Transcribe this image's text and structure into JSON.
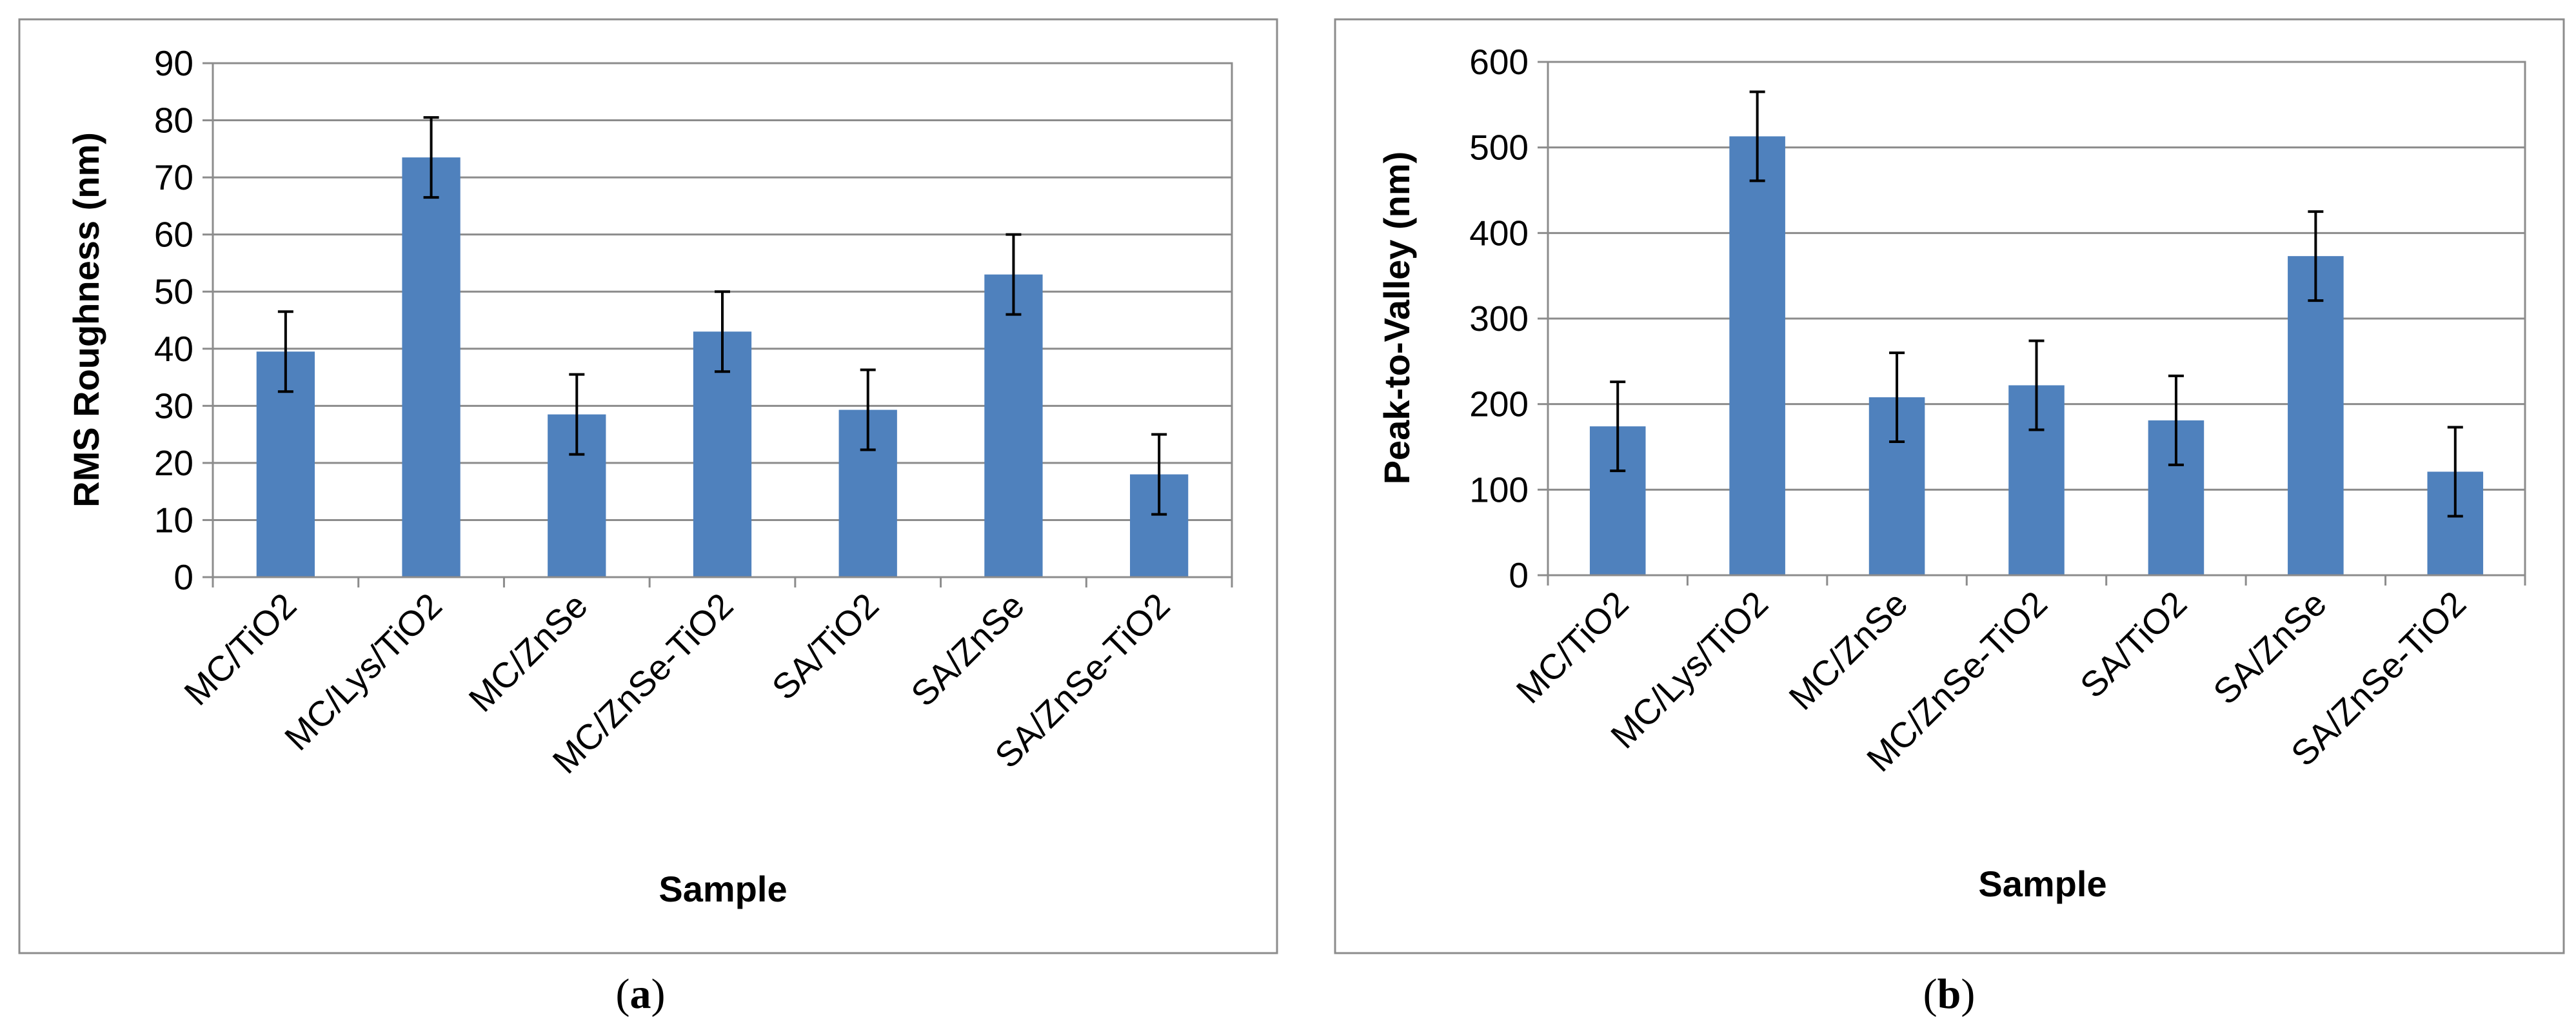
{
  "chart_data": [
    {
      "type": "bar",
      "panel_caption": "a",
      "title": "",
      "xlabel": "Sample",
      "ylabel": "RMS Roughness (nm)",
      "ylim": [
        0,
        90
      ],
      "yticks": [
        0,
        10,
        20,
        30,
        40,
        50,
        60,
        70,
        80,
        90
      ],
      "grid": true,
      "categories": [
        "MC/TiO2",
        "MC/Lys/TiO2",
        "MC/ZnSe",
        "MC/ZnSe-TiO2",
        "SA/TiO2",
        "SA/ZnSe",
        "SA/ZnSe-TiO2"
      ],
      "values": [
        39.5,
        73.5,
        28.5,
        43,
        29.3,
        53,
        18
      ],
      "errors": [
        7,
        7,
        7,
        7,
        7,
        7,
        7
      ],
      "bar_color": "#4f81bd"
    },
    {
      "type": "bar",
      "panel_caption": "b",
      "title": "",
      "xlabel": "Sample",
      "ylabel": "Peak-to-Valley (nm)",
      "ylim": [
        0,
        600
      ],
      "yticks": [
        0,
        100,
        200,
        300,
        400,
        500,
        600
      ],
      "grid": true,
      "categories": [
        "MC/TiO2",
        "MC/Lys/TiO2",
        "MC/ZnSe",
        "MC/ZnSe-TiO2",
        "SA/TiO2",
        "SA/ZnSe",
        "SA/ZnSe-TiO2"
      ],
      "values": [
        174,
        513,
        208,
        222,
        181,
        373,
        121
      ],
      "errors": [
        52,
        52,
        52,
        52,
        52,
        52,
        52
      ],
      "bar_color": "#4f81bd"
    }
  ]
}
